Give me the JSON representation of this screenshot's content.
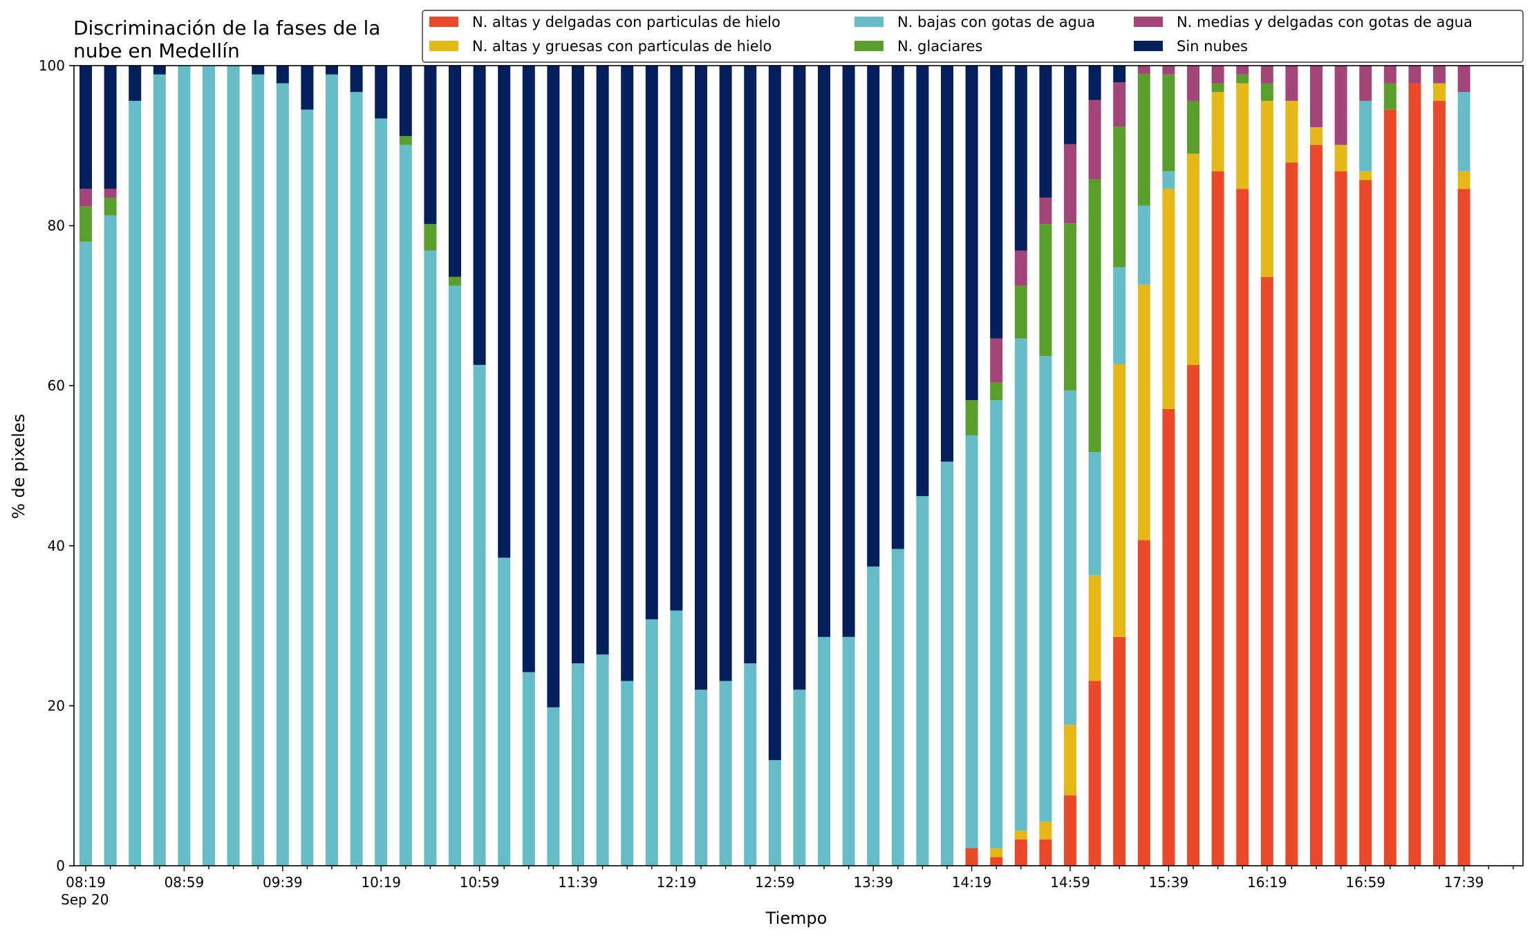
{
  "chart_data": {
    "type": "bar",
    "stacked": true,
    "title": "Discriminación de la fases de la\nnube en Medellín",
    "xlabel": "Tiempo",
    "ylabel": "% de pixeles",
    "ylim": [
      0,
      100
    ],
    "yticks": [
      0,
      20,
      40,
      60,
      80,
      100
    ],
    "grid": false,
    "legend_placement": "top-right",
    "xtick_labels": [
      "08:19\nSep 20",
      "08:59",
      "09:39",
      "10:19",
      "10:59",
      "11:39",
      "12:19",
      "12:59",
      "13:39",
      "14:19",
      "14:59",
      "15:39",
      "16:19",
      "16:59",
      "17:39"
    ],
    "categories": [
      "08:19",
      "08:29",
      "08:39",
      "08:49",
      "08:59",
      "09:09",
      "09:19",
      "09:29",
      "09:39",
      "09:49",
      "09:59",
      "10:09",
      "10:19",
      "10:29",
      "10:39",
      "10:49",
      "10:59",
      "11:09",
      "11:19",
      "11:29",
      "11:39",
      "11:49",
      "11:59",
      "12:09",
      "12:19",
      "12:29",
      "12:39",
      "12:49",
      "12:59",
      "13:09",
      "13:19",
      "13:29",
      "13:39",
      "13:49",
      "13:59",
      "14:09",
      "14:19",
      "14:29",
      "14:39",
      "14:49",
      "14:59",
      "15:09",
      "15:19",
      "15:29",
      "15:39",
      "15:49",
      "15:59",
      "16:09",
      "16:19",
      "16:29",
      "16:39",
      "16:49",
      "16:59",
      "17:09",
      "17:19",
      "17:29",
      "17:39"
    ],
    "series": [
      {
        "name": "N. altas y delgadas con particulas de hielo",
        "color": "#ea4a2a",
        "values": [
          0,
          0,
          0,
          0,
          0,
          0,
          0,
          0,
          0,
          0,
          0,
          0,
          0,
          0,
          0,
          0,
          0,
          0,
          0,
          0,
          0,
          0,
          0,
          0,
          0,
          0,
          0,
          0,
          0,
          0,
          0,
          0,
          0,
          0,
          0,
          0,
          2.2,
          1.1,
          3.3,
          3.3,
          8.8,
          23.1,
          28.6,
          40.7,
          57.1,
          62.6,
          86.8,
          84.6,
          73.6,
          87.9,
          90.1,
          86.8,
          85.7,
          94.5,
          97.8,
          95.6,
          84.6
        ]
      },
      {
        "name": "N. altas y gruesas con particulas de hielo",
        "color": "#e6b817",
        "values": [
          0,
          0,
          0,
          0,
          0,
          0,
          0,
          0,
          0,
          0,
          0,
          0,
          0,
          0,
          0,
          0,
          0,
          0,
          0,
          0,
          0,
          0,
          0,
          0,
          0,
          0,
          0,
          0,
          0,
          0,
          0,
          0,
          0,
          0,
          0,
          0,
          0,
          1.1,
          1.1,
          2.2,
          8.8,
          13.2,
          34.1,
          31.9,
          27.5,
          26.4,
          9.9,
          13.2,
          22.0,
          7.7,
          2.2,
          3.3,
          1.1,
          0,
          0,
          2.2,
          2.2
        ]
      },
      {
        "name": "N. bajas con gotas de agua",
        "color": "#66bcc7",
        "values": [
          78.0,
          81.3,
          95.6,
          98.9,
          100,
          100,
          100,
          98.9,
          97.8,
          94.5,
          98.9,
          96.7,
          93.4,
          90.1,
          76.9,
          72.5,
          62.6,
          38.5,
          24.2,
          19.8,
          25.3,
          26.4,
          23.1,
          30.8,
          31.9,
          22.0,
          23.1,
          25.3,
          13.2,
          22.0,
          28.6,
          28.6,
          37.4,
          39.6,
          46.2,
          50.5,
          51.6,
          56.0,
          61.5,
          58.2,
          41.8,
          15.4,
          12.1,
          9.9,
          2.2,
          0,
          0,
          0,
          0,
          0,
          0,
          0,
          8.8,
          0,
          0,
          0,
          9.9
        ]
      },
      {
        "name": "N. glaciares",
        "color": "#5a9e2b",
        "values": [
          4.4,
          2.2,
          0,
          0,
          0,
          0,
          0,
          0,
          0,
          0,
          0,
          0,
          0,
          1.1,
          3.3,
          1.1,
          0,
          0,
          0,
          0,
          0,
          0,
          0,
          0,
          0,
          0,
          0,
          0,
          0,
          0,
          0,
          0,
          0,
          0,
          0,
          0,
          4.4,
          2.2,
          6.6,
          16.5,
          20.9,
          34.1,
          17.6,
          16.5,
          12.1,
          6.6,
          1.1,
          1.1,
          2.2,
          0,
          0,
          0,
          0,
          3.3,
          0,
          0,
          0
        ]
      },
      {
        "name": "N. medias y delgadas con gotas de agua",
        "color": "#a4457a",
        "values": [
          2.2,
          1.1,
          0,
          0,
          0,
          0,
          0,
          0,
          0,
          0,
          0,
          0,
          0,
          0,
          0,
          0,
          0,
          0,
          0,
          0,
          0,
          0,
          0,
          0,
          0,
          0,
          0,
          0,
          0,
          0,
          0,
          0,
          0,
          0,
          0,
          0,
          0,
          5.5,
          4.4,
          3.3,
          9.9,
          9.9,
          5.5,
          1.1,
          1.1,
          4.4,
          2.2,
          1.1,
          2.2,
          4.4,
          7.7,
          9.9,
          4.4,
          2.2,
          2.2,
          2.2,
          3.3
        ]
      },
      {
        "name": "Sin nubes",
        "color": "#041f5c",
        "values": [
          15.4,
          15.4,
          4.4,
          1.1,
          0,
          0,
          0,
          1.1,
          2.2,
          5.5,
          1.1,
          3.3,
          6.6,
          8.8,
          19.8,
          26.4,
          37.4,
          61.5,
          75.8,
          80.2,
          74.7,
          73.6,
          76.9,
          69.2,
          68.1,
          78.0,
          76.9,
          74.7,
          86.8,
          78.0,
          71.4,
          71.4,
          62.6,
          60.4,
          53.8,
          49.5,
          41.8,
          34.1,
          23.1,
          16.5,
          9.9,
          4.4,
          2.2,
          0,
          0,
          0,
          0,
          0,
          0,
          0,
          0,
          0,
          0,
          0,
          0,
          0,
          0
        ]
      }
    ]
  }
}
